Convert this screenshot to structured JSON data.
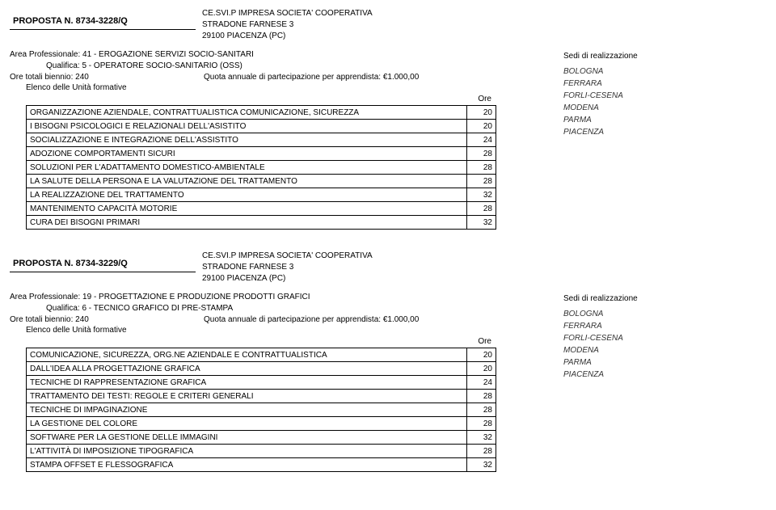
{
  "proposals": [
    {
      "proposal_label": "PROPOSTA N. 8734-3228/Q",
      "company": {
        "name": "CE.SVI.P IMPRESA SOCIETA' COOPERATIVA",
        "street": "STRADONE FARNESE 3",
        "city": "29100 PIACENZA (PC)"
      },
      "area": "Area Professionale: 41 - EROGAZIONE SERVIZI SOCIO-SANITARI",
      "qualifica": "Qualifica: 5 - OPERATORE SOCIO-SANITARIO (OSS)",
      "ore_totali": "Ore totali biennio: 240",
      "quota": "Quota annuale di partecipazione per apprendista: €1.000,00",
      "elenco": "Elenco delle Unità formative",
      "ore_header": "Ore",
      "rows": [
        {
          "label": "ORGANIZZAZIONE AZIENDALE, CONTRATTUALISTICA COMUNICAZIONE, SICUREZZA",
          "ore": "20"
        },
        {
          "label": "I BISOGNI PSICOLOGICI E RELAZIONALI DELL'ASISTITO",
          "ore": "20"
        },
        {
          "label": "SOCIALIZZAZIONE E INTEGRAZIONE DELL'ASSISTITO",
          "ore": "24"
        },
        {
          "label": "ADOZIONE COMPORTAMENTI SICURI",
          "ore": "28"
        },
        {
          "label": "SOLUZIONI PER L'ADATTAMENTO DOMESTICO-AMBIENTALE",
          "ore": "28"
        },
        {
          "label": "LA SALUTE DELLA PERSONA E LA VALUTAZIONE DEL TRATTAMENTO",
          "ore": "28"
        },
        {
          "label": "LA REALIZZAZIONE DEL TRATTAMENTO",
          "ore": "32"
        },
        {
          "label": "MANTENIMENTO CAPACITÀ MOTORIE",
          "ore": "28"
        },
        {
          "label": "CURA DEI BISOGNI PRIMARI",
          "ore": "32"
        }
      ],
      "sedi_title": "Sedi di realizzazione",
      "sedi": [
        "BOLOGNA",
        "FERRARA",
        "FORLI-CESENA",
        "MODENA",
        "PARMA",
        "PIACENZA"
      ]
    },
    {
      "proposal_label": "PROPOSTA N. 8734-3229/Q",
      "company": {
        "name": "CE.SVI.P IMPRESA SOCIETA' COOPERATIVA",
        "street": "STRADONE FARNESE 3",
        "city": "29100 PIACENZA (PC)"
      },
      "area": "Area Professionale: 19 - PROGETTAZIONE E PRODUZIONE PRODOTTI GRAFICI",
      "qualifica": "Qualifica: 6 - TECNICO GRAFICO DI PRE-STAMPA",
      "ore_totali": "Ore totali biennio: 240",
      "quota": "Quota annuale di partecipazione per apprendista: €1.000,00",
      "elenco": "Elenco delle Unità formative",
      "ore_header": "Ore",
      "rows": [
        {
          "label": "COMUNICAZIONE, SICUREZZA, ORG.NE AZIENDALE E CONTRATTUALISTICA",
          "ore": "20"
        },
        {
          "label": "DALL'IDEA ALLA PROGETTAZIONE GRAFICA",
          "ore": "20"
        },
        {
          "label": "TECNICHE DI RAPPRESENTAZIONE GRAFICA",
          "ore": "24"
        },
        {
          "label": "TRATTAMENTO DEI TESTI: REGOLE E CRITERI GENERALI",
          "ore": "28"
        },
        {
          "label": "TECNICHE DI IMPAGINAZIONE",
          "ore": "28"
        },
        {
          "label": "LA GESTIONE DEL COLORE",
          "ore": "28"
        },
        {
          "label": "SOFTWARE PER LA GESTIONE DELLE IMMAGINI",
          "ore": "32"
        },
        {
          "label": "L'ATTIVITÀ DI IMPOSIZIONE TIPOGRAFICA",
          "ore": "28"
        },
        {
          "label": "STAMPA OFFSET E FLESSOGRAFICA",
          "ore": "32"
        }
      ],
      "sedi_title": "Sedi di realizzazione",
      "sedi": [
        "BOLOGNA",
        "FERRARA",
        "FORLI-CESENA",
        "MODENA",
        "PARMA",
        "PIACENZA"
      ]
    }
  ]
}
